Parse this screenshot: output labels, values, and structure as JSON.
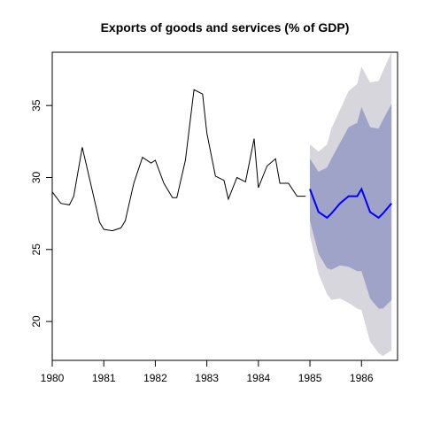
{
  "chart_data": {
    "type": "line",
    "title": "Exports of goods and services (% of GDP)",
    "xlabel": "",
    "ylabel": "",
    "xlim": [
      1980,
      1986.7
    ],
    "ylim": [
      17.3,
      38.7
    ],
    "x_ticks": [
      1980,
      1981,
      1982,
      1983,
      1984,
      1985,
      1986
    ],
    "y_ticks": [
      20,
      25,
      30,
      35
    ],
    "grid": false,
    "colors": {
      "history_line": "#000000",
      "forecast_line": "#0000ff",
      "band_80": "#a0a3c8",
      "band_95": "#d6d6dc"
    },
    "history": {
      "x": [
        1980.0,
        1980.167,
        1980.333,
        1980.417,
        1980.583,
        1980.75,
        1980.917,
        1981.0,
        1981.167,
        1981.333,
        1981.417,
        1981.583,
        1981.75,
        1981.917,
        1982.0,
        1982.167,
        1982.333,
        1982.417,
        1982.583,
        1982.75,
        1982.917,
        1983.0,
        1983.167,
        1983.333,
        1983.417,
        1983.583,
        1983.75,
        1983.917,
        1984.0,
        1984.167,
        1984.333,
        1984.417,
        1984.583,
        1984.75,
        1984.917
      ],
      "y": [
        29.0,
        28.2,
        28.1,
        28.7,
        32.1,
        29.5,
        26.9,
        26.4,
        26.3,
        26.5,
        27.0,
        29.6,
        31.4,
        31.0,
        31.2,
        29.6,
        28.6,
        28.6,
        31.2,
        36.1,
        35.8,
        33.1,
        30.1,
        29.8,
        28.5,
        30.0,
        29.7,
        32.7,
        29.3,
        30.8,
        31.3,
        29.6,
        29.6,
        28.7,
        28.7
      ]
    },
    "forecast": {
      "x": [
        1985.0,
        1985.167,
        1985.333,
        1985.417,
        1985.583,
        1985.75,
        1985.917,
        1986.0,
        1986.167,
        1986.333,
        1986.417,
        1986.583
      ],
      "mean": [
        29.2,
        27.6,
        27.2,
        27.5,
        28.2,
        28.7,
        28.7,
        29.2,
        27.6,
        27.2,
        27.5,
        28.2
      ],
      "lower_80": [
        27.0,
        24.7,
        23.7,
        23.6,
        23.9,
        23.8,
        23.5,
        23.5,
        21.6,
        20.9,
        20.9,
        21.5
      ],
      "upper_80": [
        31.3,
        30.4,
        30.7,
        31.3,
        32.4,
        33.5,
        33.8,
        34.9,
        33.5,
        33.4,
        34.0,
        35.1
      ],
      "lower_95": [
        26.0,
        23.3,
        21.9,
        21.5,
        21.6,
        21.3,
        20.9,
        20.8,
        18.6,
        17.8,
        17.6,
        18.0
      ],
      "upper_95": [
        32.3,
        31.8,
        32.3,
        33.4,
        34.7,
        36.0,
        36.5,
        37.7,
        36.6,
        36.7,
        37.4,
        38.7
      ]
    }
  }
}
